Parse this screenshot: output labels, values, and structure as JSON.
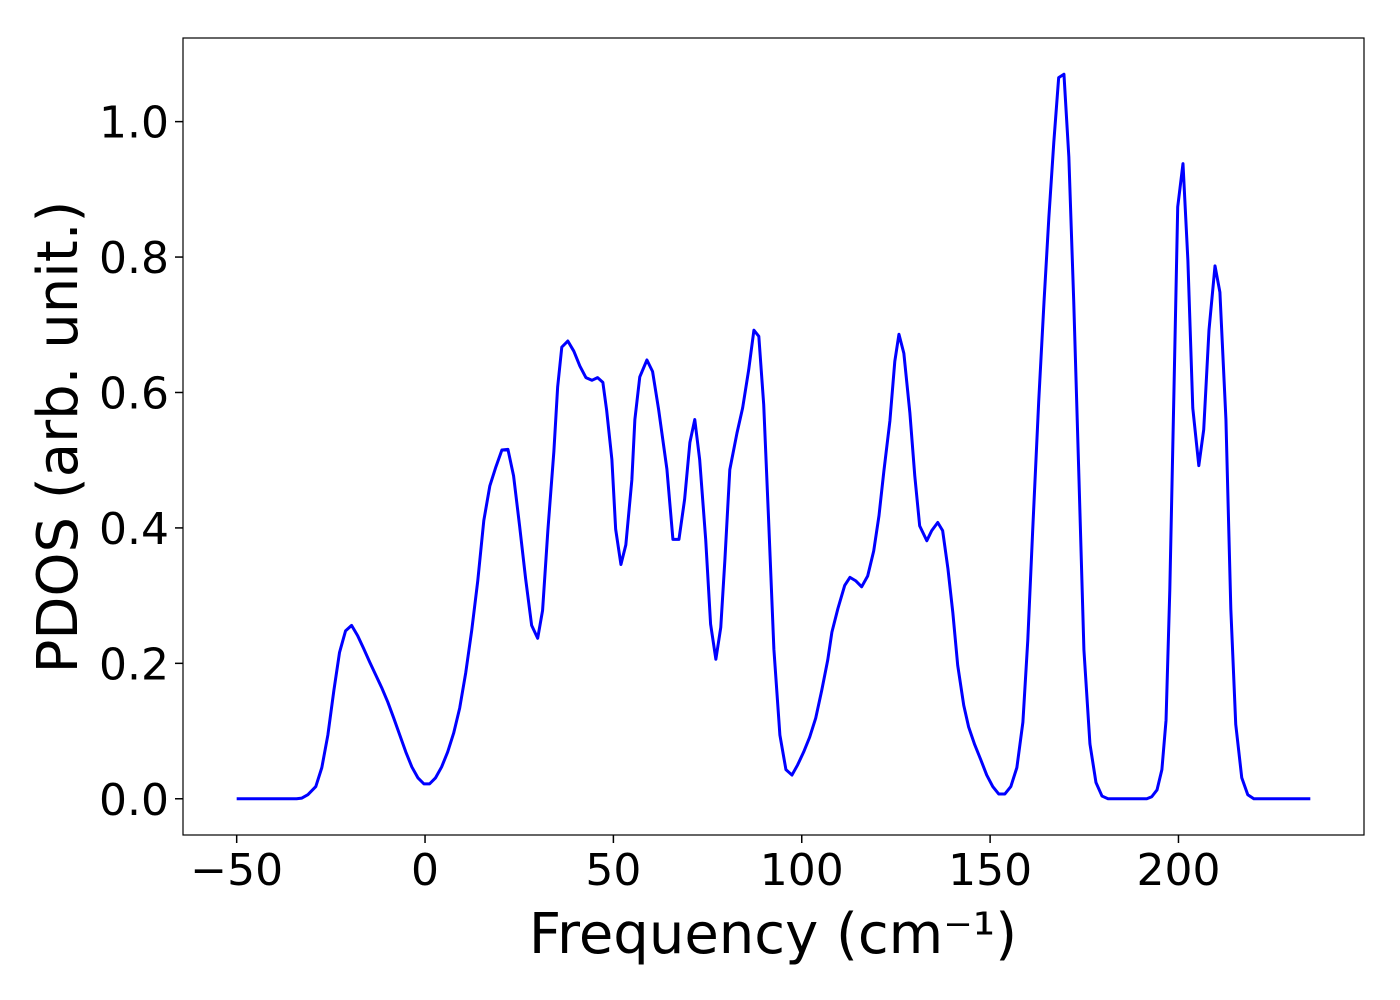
{
  "chart_data": {
    "type": "line",
    "x_label": "Frequency (cm⁻¹)",
    "y_label": "PDOS (arb. unit.)",
    "xlim": [
      -64.25,
      249.25
    ],
    "ylim": [
      -0.0535,
      1.1235
    ],
    "xticks": [
      {
        "value": -50,
        "label": "−50"
      },
      0,
      50,
      100,
      150,
      200
    ],
    "yticks": [
      {
        "value": 0,
        "label": "0.0"
      },
      {
        "value": 0.2,
        "label": "0.2"
      },
      {
        "value": 0.4,
        "label": "0.4"
      },
      {
        "value": 0.6,
        "label": "0.6"
      },
      {
        "value": 0.8,
        "label": "0.8"
      },
      {
        "value": 1,
        "label": "1.0"
      }
    ],
    "grid": false,
    "series": [
      {
        "color": "#0000ff",
        "x": [
          -50,
          -34.1,
          -32.7,
          -31.1,
          -29.0,
          -27.4,
          -25.8,
          -24.2,
          -22.7,
          -21.1,
          -19.5,
          -17.9,
          -16.3,
          -14.7,
          -13.1,
          -11.5,
          -9.9,
          -8.3,
          -6.7,
          -5.1,
          -3.5,
          -1.9,
          -0.3,
          1.2,
          2.8,
          4.4,
          6.0,
          7.6,
          9.2,
          10.8,
          12.4,
          14.0,
          15.6,
          17.2,
          18.8,
          20.4,
          22.0,
          23.5,
          25.1,
          26.7,
          28.3,
          29.9,
          31.2,
          32.6,
          34.2,
          35.2,
          36.3,
          37.9,
          39.5,
          41.1,
          42.7,
          44.3,
          45.8,
          47.2,
          48.2,
          49.6,
          50.6,
          52.0,
          53.3,
          54.9,
          55.7,
          57.0,
          58.9,
          60.4,
          62.0,
          64.2,
          65.8,
          67.4,
          68.9,
          70.3,
          71.6,
          72.9,
          74.5,
          75.8,
          77.2,
          78.5,
          79.6,
          80.9,
          82.8,
          84.3,
          85.9,
          87.3,
          88.6,
          89.9,
          91.2,
          92.6,
          94.2,
          95.8,
          97.4,
          98.9,
          100.5,
          102.1,
          103.7,
          105.3,
          106.9,
          108.0,
          109.6,
          111.4,
          112.8,
          114.3,
          115.9,
          117.5,
          119.1,
          120.5,
          121.8,
          123.4,
          124.7,
          125.8,
          127.1,
          128.7,
          130.0,
          131.3,
          133.2,
          134.5,
          136.1,
          137.4,
          138.8,
          140.1,
          141.4,
          143.0,
          144.3,
          145.9,
          147.5,
          149.1,
          150.7,
          152.3,
          153.9,
          155.5,
          157.1,
          158.7,
          160.0,
          161.3,
          162.9,
          164.3,
          165.6,
          166.9,
          168.2,
          169.6,
          170.9,
          172.2,
          173.6,
          174.9,
          176.5,
          178.1,
          179.7,
          181.3,
          191.6,
          192.9,
          194.3,
          195.6,
          196.7,
          197.7,
          198.8,
          199.8,
          201.2,
          202.5,
          203.8,
          205.4,
          206.7,
          208.1,
          209.7,
          211.0,
          212.6,
          213.9,
          215.2,
          216.8,
          218.4,
          220.0,
          235
        ],
        "values": [
          0,
          0,
          0.001,
          0.006,
          0.018,
          0.046,
          0.094,
          0.16,
          0.216,
          0.248,
          0.256,
          0.241,
          0.222,
          0.202,
          0.183,
          0.164,
          0.143,
          0.119,
          0.094,
          0.069,
          0.047,
          0.031,
          0.022,
          0.022,
          0.031,
          0.047,
          0.069,
          0.097,
          0.134,
          0.186,
          0.249,
          0.322,
          0.411,
          0.462,
          0.49,
          0.515,
          0.516,
          0.477,
          0.403,
          0.325,
          0.256,
          0.237,
          0.278,
          0.396,
          0.513,
          0.608,
          0.667,
          0.676,
          0.661,
          0.639,
          0.622,
          0.618,
          0.622,
          0.615,
          0.574,
          0.501,
          0.398,
          0.346,
          0.375,
          0.471,
          0.56,
          0.623,
          0.648,
          0.631,
          0.575,
          0.487,
          0.383,
          0.383,
          0.442,
          0.526,
          0.56,
          0.501,
          0.383,
          0.258,
          0.206,
          0.253,
          0.353,
          0.486,
          0.54,
          0.577,
          0.633,
          0.692,
          0.683,
          0.582,
          0.412,
          0.221,
          0.094,
          0.043,
          0.035,
          0.05,
          0.069,
          0.091,
          0.119,
          0.16,
          0.205,
          0.246,
          0.281,
          0.315,
          0.327,
          0.322,
          0.313,
          0.329,
          0.366,
          0.418,
          0.484,
          0.558,
          0.646,
          0.686,
          0.658,
          0.57,
          0.477,
          0.403,
          0.381,
          0.396,
          0.408,
          0.396,
          0.34,
          0.275,
          0.197,
          0.138,
          0.106,
          0.08,
          0.058,
          0.035,
          0.018,
          0.007,
          0.007,
          0.018,
          0.046,
          0.113,
          0.234,
          0.396,
          0.587,
          0.733,
          0.859,
          0.969,
          1.065,
          1.07,
          0.948,
          0.734,
          0.47,
          0.22,
          0.081,
          0.024,
          0.004,
          0,
          0,
          0.003,
          0.013,
          0.043,
          0.116,
          0.308,
          0.602,
          0.874,
          0.938,
          0.795,
          0.577,
          0.492,
          0.545,
          0.692,
          0.787,
          0.748,
          0.56,
          0.28,
          0.11,
          0.031,
          0.006,
          0,
          0
        ]
      }
    ]
  }
}
